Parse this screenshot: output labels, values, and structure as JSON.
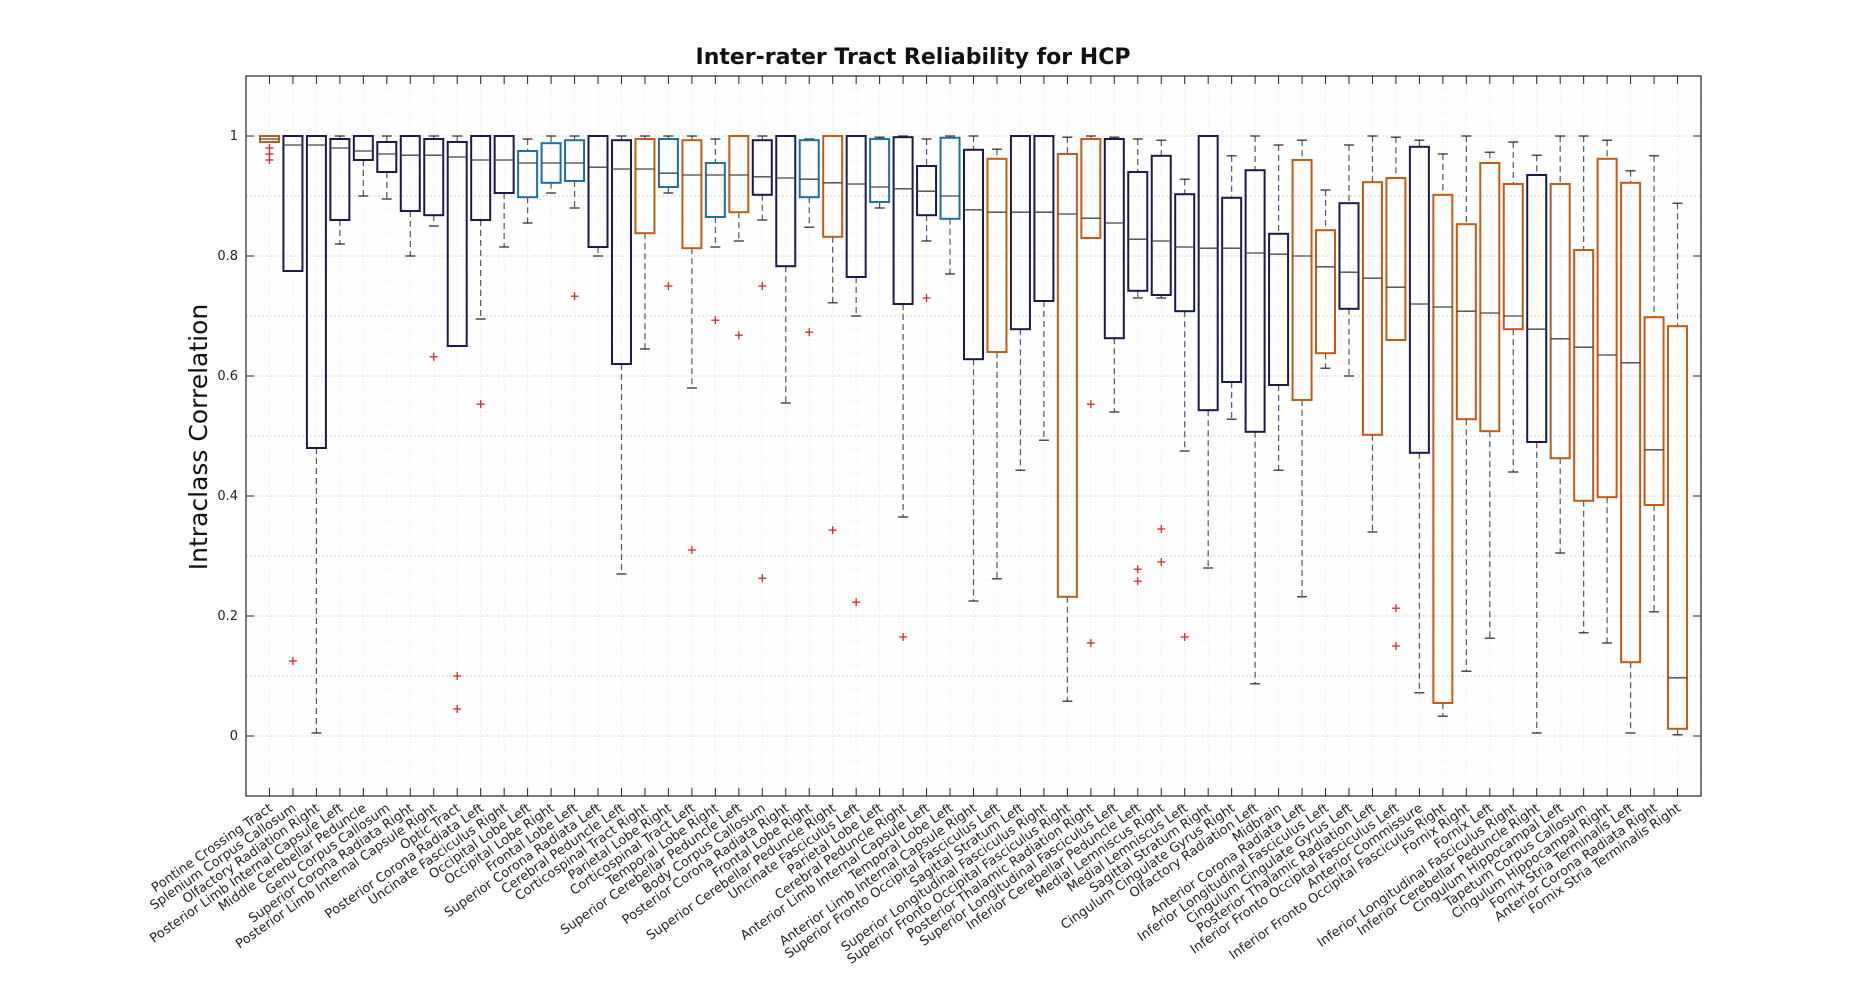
{
  "colors": {
    "dark": "#1b1b4b",
    "blue": "#1f6f9f",
    "orange": "#c45a14",
    "outlier": "#d62728",
    "whisker": "#555555"
  },
  "chart_data": {
    "type": "box",
    "title": "Inter-rater Tract Reliability for HCP",
    "xlabel": "",
    "ylabel": "Intraclass Correlation",
    "ylim": [
      -0.1,
      1.1
    ],
    "yticks": [
      0,
      0.2,
      0.4,
      0.6,
      0.8,
      1
    ],
    "yticklabels": [
      "0",
      "0.2",
      "0.4",
      "0.6",
      "0.8",
      "1"
    ],
    "grid": true,
    "categories": [
      "Pontine Crossing Tract",
      "Splenium Corpus Callosum",
      "Olfactory Radiation Right",
      "Posterior Limb Internal Capsule Left",
      "Middle Cerebellar Peduncle",
      "Genu Corpus Callosum",
      "Superior Corona Radiata Right",
      "Posterior Limb Internal Capsule Right",
      "Optic Tract",
      "Posterior Corona Radiata Left",
      "Uncinate Fasciculus Right",
      "Occipital Lobe Left",
      "Occipital Lobe Right",
      "Frontal Lobe Left",
      "Superior Corona Radiata Left",
      "Cerebral Peduncle Left",
      "Corticospinal Tract Right",
      "Parietal Lobe Right",
      "Corticospinal Tract Left",
      "Temporal Lobe Right",
      "Superior Cerebellar Peduncle Left",
      "Body Corpus Callosum",
      "Posterior Corona Radiata Right",
      "Frontal Lobe Right",
      "Superior Cerebellar Peduncle Right",
      "Uncinate Fasciculus Left",
      "Parietal Lobe Left",
      "Cerebral Peduncle Right",
      "Anterior Limb Internal Capsule Left",
      "Temporal Lobe Left",
      "Anterior Limb Internal Capsule Right",
      "Superior Fronto Occipital Fasciculus Left",
      "Sagittal Stratum Left",
      "Superior Longitudinal Fasciculus Right",
      "Superior Fronto Occipital Fasciculus Right",
      "Posterior Thalamic Radiation Right",
      "Superior Longitudinal Fasciculus Left",
      "Inferior Cerebellar Peduncle Left",
      "Medial Lemniscus Right",
      "Medial Lemniscus Left",
      "Sagittal Stratum Right",
      "Cingulum Cingulate Gyrus Right",
      "Olfactory Radiation Left",
      "Midbrain",
      "Anterior Corona Radiata Left",
      "Inferior Longitudinal Fasciculus Left",
      "Cingulum Cingulate Gyrus Left",
      "Posterior Thalamic Radiation Left",
      "Inferior Fronto Occipital Fasciculus Left",
      "Anterior Commissure",
      "Inferior Fronto Occipital Fasciculus Right",
      "Fornix Right",
      "Fornix Left",
      "Inferior Longitudinal Fasciculus Right",
      "Inferior Cerebellar Peduncle Right",
      "Cingulum Hippocampal Left",
      "Tapetum Corpus Callosum",
      "Cingulum Hippocampal Right",
      "Fornix Stria Terminalis Left",
      "Anterior Corona Radiata Right",
      "Fornix Stria Terminalis Right"
    ],
    "boxes": [
      {
        "color": "orange",
        "whislo": 0.99,
        "q1": 0.99,
        "med": 0.995,
        "q3": 1.0,
        "whishi": 1.0,
        "fliers": [
          0.98,
          0.97,
          0.96
        ]
      },
      {
        "color": "dark",
        "whislo": 0.775,
        "q1": 0.775,
        "med": 0.985,
        "q3": 1.0,
        "whishi": 1.0,
        "fliers": [
          0.125
        ]
      },
      {
        "color": "dark",
        "whislo": 0.005,
        "q1": 0.48,
        "med": 0.985,
        "q3": 1.0,
        "whishi": 1.0,
        "fliers": []
      },
      {
        "color": "dark",
        "whislo": 0.82,
        "q1": 0.86,
        "med": 0.98,
        "q3": 0.995,
        "whishi": 1.0,
        "fliers": []
      },
      {
        "color": "dark",
        "whislo": 0.9,
        "q1": 0.96,
        "med": 0.975,
        "q3": 1.0,
        "whishi": 1.0,
        "fliers": []
      },
      {
        "color": "dark",
        "whislo": 0.895,
        "q1": 0.94,
        "med": 0.97,
        "q3": 0.99,
        "whishi": 1.0,
        "fliers": []
      },
      {
        "color": "dark",
        "whislo": 0.8,
        "q1": 0.875,
        "med": 0.968,
        "q3": 1.0,
        "whishi": 1.0,
        "fliers": []
      },
      {
        "color": "dark",
        "whislo": 0.85,
        "q1": 0.868,
        "med": 0.968,
        "q3": 0.995,
        "whishi": 1.0,
        "fliers": [
          0.632
        ]
      },
      {
        "color": "dark",
        "whislo": 0.65,
        "q1": 0.65,
        "med": 0.965,
        "q3": 0.99,
        "whishi": 1.0,
        "fliers": [
          0.1,
          0.045
        ]
      },
      {
        "color": "dark",
        "whislo": 0.695,
        "q1": 0.86,
        "med": 0.96,
        "q3": 1.0,
        "whishi": 1.0,
        "fliers": [
          0.553
        ]
      },
      {
        "color": "dark",
        "whislo": 0.815,
        "q1": 0.905,
        "med": 0.96,
        "q3": 1.0,
        "whishi": 1.0,
        "fliers": []
      },
      {
        "color": "blue",
        "whislo": 0.855,
        "q1": 0.898,
        "med": 0.955,
        "q3": 0.975,
        "whishi": 0.995,
        "fliers": []
      },
      {
        "color": "blue",
        "whislo": 0.905,
        "q1": 0.922,
        "med": 0.955,
        "q3": 0.988,
        "whishi": 1.0,
        "fliers": []
      },
      {
        "color": "blue",
        "whislo": 0.88,
        "q1": 0.925,
        "med": 0.955,
        "q3": 0.993,
        "whishi": 1.0,
        "fliers": [
          0.733
        ]
      },
      {
        "color": "dark",
        "whislo": 0.8,
        "q1": 0.815,
        "med": 0.948,
        "q3": 1.0,
        "whishi": 1.0,
        "fliers": []
      },
      {
        "color": "dark",
        "whislo": 0.27,
        "q1": 0.62,
        "med": 0.945,
        "q3": 0.993,
        "whishi": 1.0,
        "fliers": []
      },
      {
        "color": "orange",
        "whislo": 0.645,
        "q1": 0.838,
        "med": 0.945,
        "q3": 0.995,
        "whishi": 1.0,
        "fliers": []
      },
      {
        "color": "blue",
        "whislo": 0.905,
        "q1": 0.915,
        "med": 0.938,
        "q3": 0.995,
        "whishi": 1.0,
        "fliers": [
          0.75
        ]
      },
      {
        "color": "orange",
        "whislo": 0.58,
        "q1": 0.813,
        "med": 0.935,
        "q3": 0.993,
        "whishi": 1.0,
        "fliers": [
          0.31
        ]
      },
      {
        "color": "blue",
        "whislo": 0.815,
        "q1": 0.865,
        "med": 0.935,
        "q3": 0.955,
        "whishi": 0.995,
        "fliers": [
          0.693
        ]
      },
      {
        "color": "orange",
        "whislo": 0.825,
        "q1": 0.873,
        "med": 0.935,
        "q3": 1.0,
        "whishi": 1.0,
        "fliers": [
          0.668
        ]
      },
      {
        "color": "dark",
        "whislo": 0.86,
        "q1": 0.902,
        "med": 0.932,
        "q3": 0.993,
        "whishi": 1.0,
        "fliers": [
          0.75,
          0.263
        ]
      },
      {
        "color": "dark",
        "whislo": 0.555,
        "q1": 0.783,
        "med": 0.93,
        "q3": 1.0,
        "whishi": 1.0,
        "fliers": []
      },
      {
        "color": "blue",
        "whislo": 0.848,
        "q1": 0.898,
        "med": 0.928,
        "q3": 0.993,
        "whishi": 0.995,
        "fliers": [
          0.673
        ]
      },
      {
        "color": "orange",
        "whislo": 0.722,
        "q1": 0.832,
        "med": 0.922,
        "q3": 1.0,
        "whishi": 1.0,
        "fliers": [
          0.343
        ]
      },
      {
        "color": "dark",
        "whislo": 0.7,
        "q1": 0.765,
        "med": 0.92,
        "q3": 1.0,
        "whishi": 1.0,
        "fliers": [
          0.223
        ]
      },
      {
        "color": "blue",
        "whislo": 0.88,
        "q1": 0.89,
        "med": 0.915,
        "q3": 0.995,
        "whishi": 0.998,
        "fliers": []
      },
      {
        "color": "dark",
        "whislo": 0.365,
        "q1": 0.72,
        "med": 0.912,
        "q3": 0.998,
        "whishi": 1.0,
        "fliers": [
          0.165
        ]
      },
      {
        "color": "dark",
        "whislo": 0.825,
        "q1": 0.868,
        "med": 0.908,
        "q3": 0.95,
        "whishi": 0.995,
        "fliers": [
          0.73
        ]
      },
      {
        "color": "blue",
        "whislo": 0.77,
        "q1": 0.862,
        "med": 0.9,
        "q3": 0.997,
        "whishi": 1.0,
        "fliers": []
      },
      {
        "color": "dark",
        "whislo": 0.225,
        "q1": 0.628,
        "med": 0.877,
        "q3": 0.977,
        "whishi": 1.0,
        "fliers": []
      },
      {
        "color": "orange",
        "whislo": 0.262,
        "q1": 0.64,
        "med": 0.873,
        "q3": 0.962,
        "whishi": 0.978,
        "fliers": []
      },
      {
        "color": "dark",
        "whislo": 0.443,
        "q1": 0.678,
        "med": 0.873,
        "q3": 1.0,
        "whishi": 1.0,
        "fliers": []
      },
      {
        "color": "dark",
        "whislo": 0.493,
        "q1": 0.725,
        "med": 0.873,
        "q3": 1.0,
        "whishi": 1.0,
        "fliers": []
      },
      {
        "color": "orange",
        "whislo": 0.058,
        "q1": 0.232,
        "med": 0.87,
        "q3": 0.97,
        "whishi": 0.998,
        "fliers": []
      },
      {
        "color": "orange",
        "whislo": 0.83,
        "q1": 0.83,
        "med": 0.863,
        "q3": 0.995,
        "whishi": 1.0,
        "fliers": [
          0.553,
          0.155
        ]
      },
      {
        "color": "dark",
        "whislo": 0.54,
        "q1": 0.663,
        "med": 0.855,
        "q3": 0.995,
        "whishi": 0.998,
        "fliers": []
      },
      {
        "color": "dark",
        "whislo": 0.73,
        "q1": 0.742,
        "med": 0.828,
        "q3": 0.94,
        "whishi": 0.995,
        "fliers": [
          0.278,
          0.258
        ]
      },
      {
        "color": "dark",
        "whislo": 0.73,
        "q1": 0.735,
        "med": 0.825,
        "q3": 0.967,
        "whishi": 0.993,
        "fliers": [
          0.345,
          0.29
        ]
      },
      {
        "color": "dark",
        "whislo": 0.475,
        "q1": 0.708,
        "med": 0.815,
        "q3": 0.903,
        "whishi": 0.928,
        "fliers": [
          0.165
        ]
      },
      {
        "color": "dark",
        "whislo": 0.28,
        "q1": 0.543,
        "med": 0.813,
        "q3": 1.0,
        "whishi": 1.0,
        "fliers": []
      },
      {
        "color": "dark",
        "whislo": 0.528,
        "q1": 0.59,
        "med": 0.813,
        "q3": 0.897,
        "whishi": 0.967,
        "fliers": []
      },
      {
        "color": "dark",
        "whislo": 0.087,
        "q1": 0.507,
        "med": 0.805,
        "q3": 0.943,
        "whishi": 1.0,
        "fliers": []
      },
      {
        "color": "dark",
        "whislo": 0.443,
        "q1": 0.585,
        "med": 0.803,
        "q3": 0.837,
        "whishi": 0.985,
        "fliers": []
      },
      {
        "color": "orange",
        "whislo": 0.232,
        "q1": 0.56,
        "med": 0.8,
        "q3": 0.96,
        "whishi": 0.993,
        "fliers": []
      },
      {
        "color": "orange",
        "whislo": 0.613,
        "q1": 0.638,
        "med": 0.782,
        "q3": 0.843,
        "whishi": 0.91,
        "fliers": []
      },
      {
        "color": "dark",
        "whislo": 0.6,
        "q1": 0.712,
        "med": 0.773,
        "q3": 0.888,
        "whishi": 0.985,
        "fliers": []
      },
      {
        "color": "orange",
        "whislo": 0.34,
        "q1": 0.502,
        "med": 0.763,
        "q3": 0.923,
        "whishi": 1.0,
        "fliers": []
      },
      {
        "color": "orange",
        "whislo": 0.66,
        "q1": 0.66,
        "med": 0.748,
        "q3": 0.93,
        "whishi": 0.998,
        "fliers": [
          0.213,
          0.15
        ]
      },
      {
        "color": "dark",
        "whislo": 0.072,
        "q1": 0.472,
        "med": 0.72,
        "q3": 0.982,
        "whishi": 0.993,
        "fliers": []
      },
      {
        "color": "orange",
        "whislo": 0.033,
        "q1": 0.055,
        "med": 0.715,
        "q3": 0.902,
        "whishi": 0.97,
        "fliers": []
      },
      {
        "color": "orange",
        "whislo": 0.108,
        "q1": 0.528,
        "med": 0.708,
        "q3": 0.853,
        "whishi": 1.0,
        "fliers": []
      },
      {
        "color": "orange",
        "whislo": 0.163,
        "q1": 0.508,
        "med": 0.705,
        "q3": 0.955,
        "whishi": 0.973,
        "fliers": []
      },
      {
        "color": "orange",
        "whislo": 0.44,
        "q1": 0.678,
        "med": 0.7,
        "q3": 0.92,
        "whishi": 0.99,
        "fliers": []
      },
      {
        "color": "dark",
        "whislo": 0.005,
        "q1": 0.49,
        "med": 0.678,
        "q3": 0.935,
        "whishi": 0.968,
        "fliers": []
      },
      {
        "color": "orange",
        "whislo": 0.305,
        "q1": 0.463,
        "med": 0.662,
        "q3": 0.92,
        "whishi": 1.0,
        "fliers": []
      },
      {
        "color": "orange",
        "whislo": 0.172,
        "q1": 0.392,
        "med": 0.648,
        "q3": 0.81,
        "whishi": 1.0,
        "fliers": []
      },
      {
        "color": "orange",
        "whislo": 0.155,
        "q1": 0.398,
        "med": 0.635,
        "q3": 0.962,
        "whishi": 0.993,
        "fliers": []
      },
      {
        "color": "orange",
        "whislo": 0.005,
        "q1": 0.123,
        "med": 0.622,
        "q3": 0.922,
        "whishi": 0.942,
        "fliers": []
      },
      {
        "color": "orange",
        "whislo": 0.207,
        "q1": 0.385,
        "med": 0.477,
        "q3": 0.698,
        "whishi": 0.967,
        "fliers": []
      },
      {
        "color": "orange",
        "whislo": 0.002,
        "q1": 0.012,
        "med": 0.097,
        "q3": 0.683,
        "whishi": 0.888,
        "fliers": []
      }
    ]
  }
}
